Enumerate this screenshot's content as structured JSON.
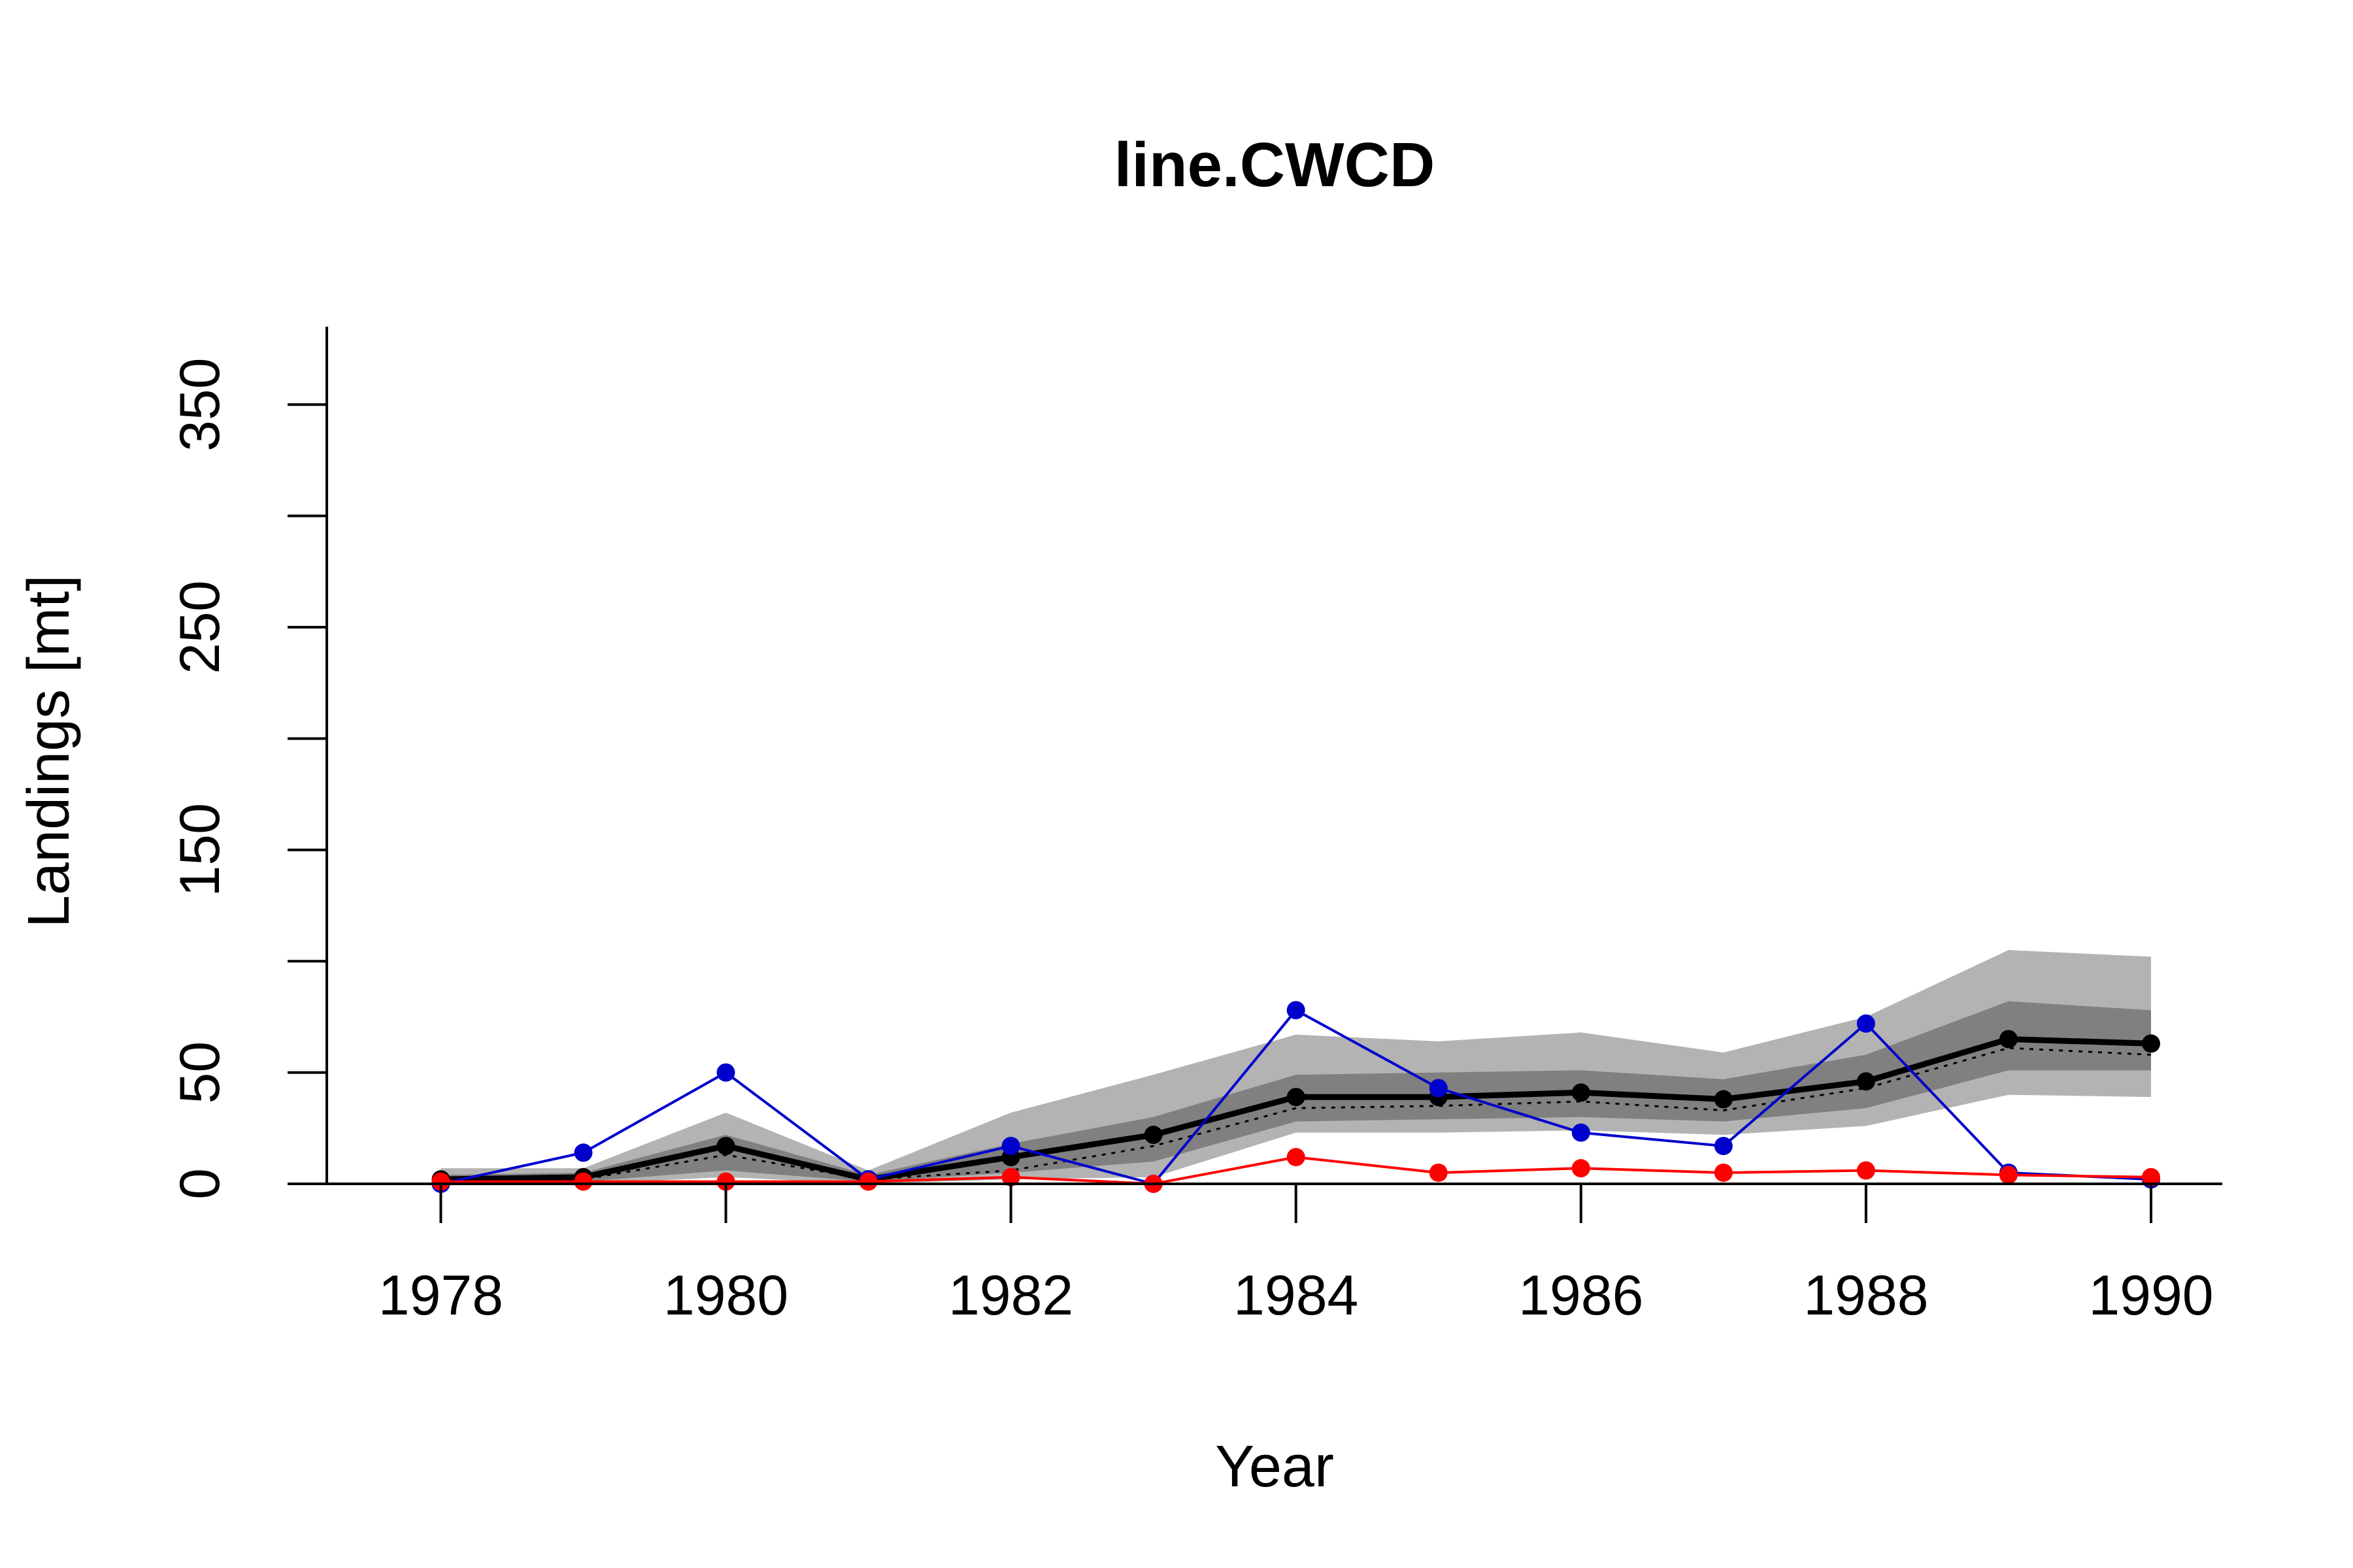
{
  "chart_data": {
    "type": "line",
    "title": "line.CWCD",
    "xlabel": "Year",
    "ylabel": "Landings [mt]",
    "xlim": [
      1977.2,
      1990.5
    ],
    "ylim": [
      0,
      385
    ],
    "x_ticks": [
      1978,
      1980,
      1982,
      1984,
      1986,
      1988,
      1990
    ],
    "y_ticks": [
      0,
      50,
      100,
      150,
      200,
      250,
      300,
      350
    ],
    "y_tick_labels": [
      "0",
      "50",
      "",
      "150",
      "",
      "250",
      "",
      "350"
    ],
    "x": [
      1978,
      1979,
      1980,
      1981,
      1982,
      1983,
      1984,
      1985,
      1986,
      1987,
      1988,
      1989,
      1990
    ],
    "bands": [
      {
        "color": "#b3b3b3",
        "lower": [
          0,
          0,
          3,
          0,
          2,
          3,
          23,
          23,
          24,
          22,
          26,
          40,
          39
        ],
        "upper": [
          7,
          7,
          32,
          6,
          32,
          49,
          67,
          64,
          68,
          59,
          75,
          105,
          102
        ]
      },
      {
        "color": "#808080",
        "lower": [
          1,
          1,
          6,
          1,
          5,
          10,
          28,
          29,
          30,
          28,
          34,
          51,
          51
        ],
        "upper": [
          4,
          5,
          22,
          4,
          18,
          30,
          49,
          50,
          51,
          47,
          58,
          82,
          78
        ]
      }
    ],
    "series": [
      {
        "color": "#000000",
        "style": "dotted",
        "width": 3,
        "markers": false,
        "values": [
          1,
          2,
          13,
          2,
          6,
          17,
          34,
          35,
          37,
          33,
          43,
          61,
          58
        ]
      },
      {
        "color": "#000000",
        "style": "solid",
        "width": 9,
        "markers": true,
        "values": [
          2,
          3,
          17,
          2,
          12,
          22,
          39,
          39,
          41,
          38,
          46,
          65,
          63
        ]
      },
      {
        "color": "#0000cc",
        "style": "solid",
        "width": 4,
        "markers": true,
        "values": [
          0,
          14,
          50,
          2,
          17,
          0,
          78,
          43,
          23,
          17,
          72,
          5,
          2
        ]
      },
      {
        "color": "#ff0000",
        "style": "solid",
        "width": 4,
        "markers": true,
        "values": [
          1,
          1,
          1,
          1,
          3,
          0,
          12,
          5,
          7,
          5,
          6,
          4,
          3
        ]
      }
    ]
  }
}
